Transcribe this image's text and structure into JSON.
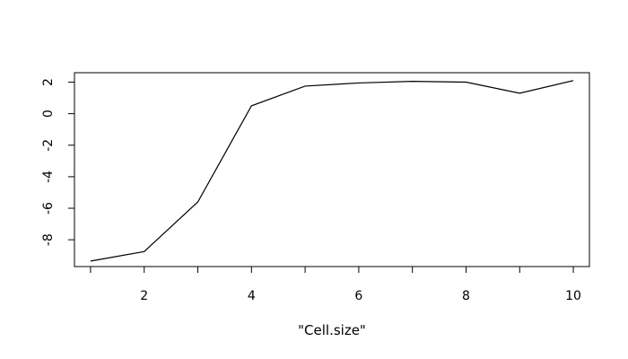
{
  "chart_data": {
    "type": "line",
    "title": "",
    "xlabel": "\"Cell.size\"",
    "ylabel": "",
    "x": [
      1,
      2,
      3,
      4,
      5,
      6,
      7,
      8,
      9,
      10
    ],
    "series": [
      {
        "values": [
          -9.35,
          -8.75,
          -5.6,
          0.5,
          1.75,
          1.95,
          2.05,
          2.0,
          1.3,
          2.1
        ]
      }
    ],
    "xlim": [
      0.7,
      10.3
    ],
    "ylim": [
      -9.7,
      2.6
    ],
    "x_ticks": [
      2,
      4,
      6,
      8,
      10
    ],
    "x_minor_ticks": [
      1,
      3,
      5,
      7,
      9
    ],
    "y_ticks": [
      -8,
      -6,
      -4,
      -2,
      0,
      2
    ],
    "y_tick_labels": [
      "-8",
      "-6",
      "-4",
      "-2",
      "0",
      "2"
    ],
    "x_tick_labels": [
      "2",
      "4",
      "6",
      "8",
      "10"
    ],
    "grid": false,
    "colors": {
      "line": "#000000",
      "axis": "#000000",
      "background": "#ffffff"
    }
  }
}
